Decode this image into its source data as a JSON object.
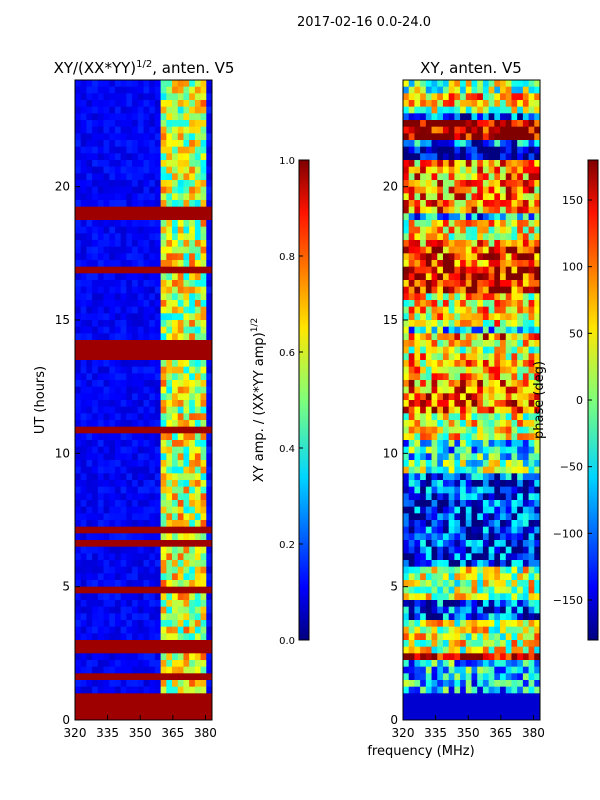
{
  "figure": {
    "suptitle": "2017-02-16 0.0-24.0",
    "shared_xlabel": "frequency (MHz)"
  },
  "chart_data": [
    {
      "type": "heatmap",
      "title_prefix": "XY/(XX*YY)",
      "title_exponent": "1/2",
      "title_suffix": ", anten. V5",
      "xlabel": "",
      "ylabel": "UT (hours)",
      "x_ticks": [
        320,
        335,
        350,
        365,
        380
      ],
      "y_ticks": [
        0,
        5,
        10,
        15,
        20
      ],
      "xlim": [
        320,
        383
      ],
      "ylim": [
        0,
        24
      ],
      "colorbar": {
        "label": "XY amp. / (XX*YY amp)",
        "label_exponent": "1/2",
        "ticks": [
          "0.0",
          "0.2",
          "0.4",
          "0.6",
          "0.8",
          "1.0"
        ],
        "range": [
          0,
          1
        ],
        "colormap": "jet"
      },
      "description_values": {
        "high_rows_ut": [
          0.2,
          0.5,
          0.75,
          1.6,
          2.7,
          2.9,
          4.8,
          6.7,
          7.1,
          10.8,
          13.7,
          14.0,
          16.9,
          18.9,
          19.1
        ],
        "bright_band_mhz": [
          360,
          381
        ]
      }
    },
    {
      "type": "heatmap",
      "title": "XY, anten. V5",
      "xlabel": "",
      "ylabel": "",
      "x_ticks": [
        320,
        335,
        350,
        365,
        380
      ],
      "y_ticks": [
        0,
        5,
        10,
        15,
        20
      ],
      "xlim": [
        320,
        383
      ],
      "ylim": [
        0,
        24
      ],
      "colorbar": {
        "label": "phase (deg)",
        "ticks": [
          "150",
          "100",
          "50",
          "0",
          "−50",
          "−100",
          "−150"
        ],
        "tick_values": [
          150,
          100,
          50,
          0,
          -50,
          -100,
          -150
        ],
        "range": [
          -180,
          180
        ],
        "colormap": "jet"
      }
    }
  ]
}
